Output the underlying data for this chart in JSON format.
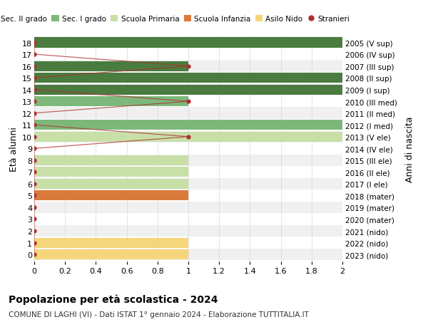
{
  "ages": [
    18,
    17,
    16,
    15,
    14,
    13,
    12,
    11,
    10,
    9,
    8,
    7,
    6,
    5,
    4,
    3,
    2,
    1,
    0
  ],
  "years": [
    "2005 (V sup)",
    "2006 (IV sup)",
    "2007 (III sup)",
    "2008 (II sup)",
    "2009 (I sup)",
    "2010 (III med)",
    "2011 (II med)",
    "2012 (I med)",
    "2013 (V ele)",
    "2014 (IV ele)",
    "2015 (III ele)",
    "2016 (II ele)",
    "2017 (I ele)",
    "2018 (mater)",
    "2019 (mater)",
    "2020 (mater)",
    "2021 (nido)",
    "2022 (nido)",
    "2023 (nido)"
  ],
  "bar_values": [
    2.0,
    0,
    1.0,
    2.0,
    2.0,
    1.0,
    0,
    2.0,
    2.0,
    0,
    1.0,
    1.0,
    1.0,
    1.0,
    0,
    0,
    0,
    1.0,
    1.0
  ],
  "bar_colors": [
    "#4a7c3f",
    "#4a7c3f",
    "#4a7c3f",
    "#4a7c3f",
    "#4a7c3f",
    "#7db87a",
    "#7db87a",
    "#7db87a",
    "#c8dfa8",
    "#c8dfa8",
    "#c8dfa8",
    "#c8dfa8",
    "#c8dfa8",
    "#d97b3a",
    "#d97b3a",
    "#d97b3a",
    "#f5d67a",
    "#f5d67a",
    "#f5d67a"
  ],
  "stranieri_x": [
    0,
    0,
    1.0,
    0,
    0,
    1.0,
    0,
    0,
    1.0,
    0,
    0,
    0,
    0,
    0,
    0,
    0,
    0,
    0,
    0
  ],
  "stranieri_ages": [
    18,
    17,
    16,
    15,
    14,
    13,
    12,
    11,
    10,
    9,
    8,
    7,
    6,
    5,
    4,
    3,
    2,
    1,
    0
  ],
  "colors": {
    "sec2": "#4a7c3f",
    "sec1": "#7db87a",
    "primaria": "#c8dfa8",
    "infanzia": "#d97b3a",
    "nido": "#f5d67a",
    "stranieri": "#b03030"
  },
  "legend_labels": [
    "Sec. II grado",
    "Sec. I grado",
    "Scuola Primaria",
    "Scuola Infanzia",
    "Asilo Nido",
    "Stranieri"
  ],
  "legend_colors": [
    "#4a7c3f",
    "#7db87a",
    "#c8dfa8",
    "#d97b3a",
    "#f5d67a",
    "#b03030"
  ],
  "ylabel_left": "Età alunni",
  "ylabel_right": "Anni di nascita",
  "title": "Popolazione per età scolastica - 2024",
  "subtitle": "COMUNE DI LAGHI (VI) - Dati ISTAT 1° gennaio 2024 - Elaborazione TUTTITALIA.IT",
  "xlim": [
    0,
    2.0
  ],
  "xticks": [
    0,
    0.2,
    0.4,
    0.6,
    0.8,
    1.0,
    1.2,
    1.4,
    1.6,
    1.8,
    2.0
  ],
  "bar_height": 0.85,
  "bg_color": "#ffffff",
  "grid_color": "#cccccc",
  "row_bg_even": "#f0f0f0",
  "row_bg_odd": "#ffffff"
}
